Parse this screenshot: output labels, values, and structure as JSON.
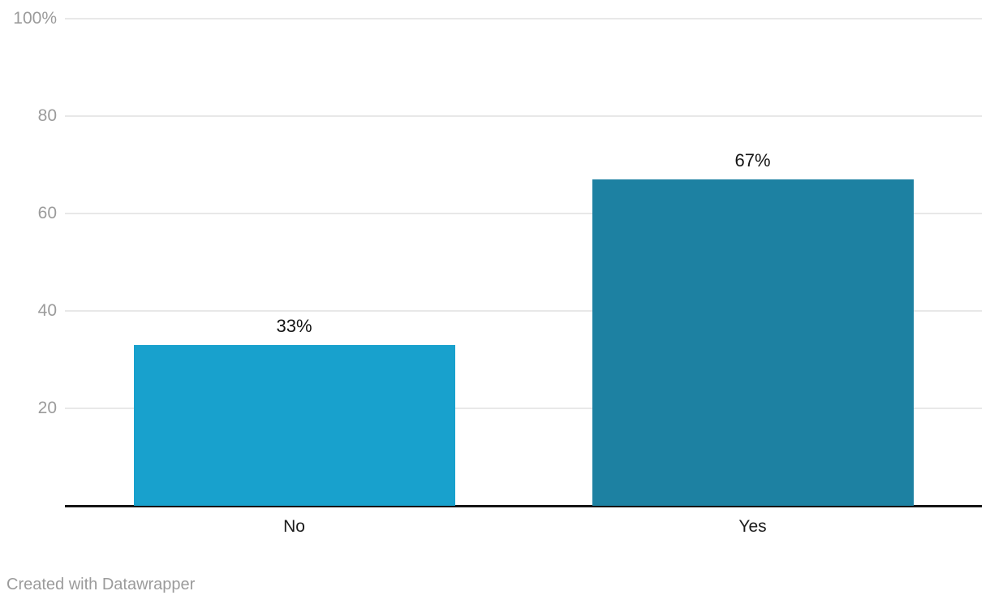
{
  "chart_data": {
    "type": "bar",
    "categories": [
      "No",
      "Yes"
    ],
    "values": [
      33,
      67
    ],
    "value_labels": [
      "33%",
      "67%"
    ],
    "title": "",
    "xlabel": "",
    "ylabel": "",
    "ylim": [
      0,
      100
    ],
    "yticks": [
      20,
      40,
      60,
      80,
      100
    ],
    "ytick_labels": [
      "20",
      "40",
      "60",
      "80",
      "100%"
    ],
    "grid": true,
    "legend": "none",
    "bar_colors": [
      "#18a1cd",
      "#1d81a2"
    ],
    "gridline_color": "#e8e8e8",
    "axis_line_color": "#151515",
    "tick_label_color": "#9b9b9b",
    "value_label_color": "#141414"
  },
  "footer": {
    "attribution": "Created with Datawrapper"
  }
}
